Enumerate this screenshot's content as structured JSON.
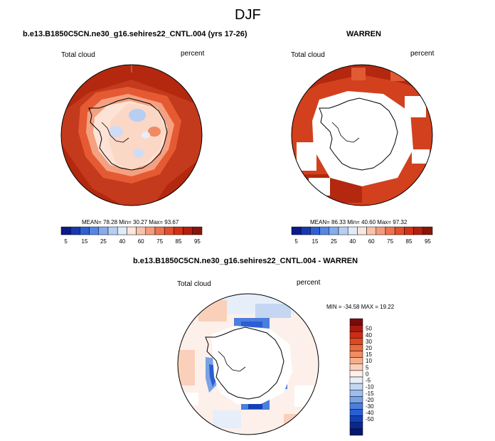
{
  "figure": {
    "season": "DJF",
    "left_panel": {
      "title": "b.e13.B1850C5CN.ne30_g16.sehires22_CNTL.004 (yrs 17-26)",
      "variable": "Total cloud",
      "units": "percent",
      "stats": "MEAN=  78.28  Min=  30.27  Max=  93.67"
    },
    "right_panel": {
      "title": "WARREN",
      "variable": "Total cloud",
      "units": "percent",
      "stats": "MEAN=  86.33  Min=  40.60  Max=  97.32"
    },
    "diff_panel": {
      "title": "b.e13.B1850C5CN.ne30_g16.sehires22_CNTL.004 - WARREN",
      "variable": "Total cloud",
      "units": "percent",
      "stats": "MIN = -34.58 MAX =  19.22"
    },
    "colorbar_abs": {
      "colors": [
        "#0a1a8a",
        "#1638b0",
        "#2e5fd4",
        "#5586e6",
        "#86acee",
        "#b7cff4",
        "#e0ebf8",
        "#fde6dc",
        "#f9c2ac",
        "#f59c7c",
        "#ee7350",
        "#e44e2c",
        "#d23116",
        "#b41e0e",
        "#8a1408"
      ],
      "ticks": [
        "5",
        "15",
        "25",
        "40",
        "60",
        "75",
        "85",
        "95"
      ]
    },
    "colorbar_diff": {
      "colors": [
        "#7a0a0a",
        "#a81a10",
        "#cc2c14",
        "#e0481e",
        "#ec6a3c",
        "#f28c62",
        "#f6ae8c",
        "#fad0ba",
        "#fdf0ea",
        "#e6eef9",
        "#c4d6f2",
        "#9ebcec",
        "#7aa2e6",
        "#4a7ee0",
        "#2a5ed2",
        "#1440b4",
        "#0a2890",
        "#06186a"
      ],
      "ticks": [
        "50",
        "40",
        "30",
        "20",
        "15",
        "10",
        "5",
        "0",
        "-5",
        "-10",
        "-15",
        "-20",
        "-30",
        "-40",
        "-50"
      ]
    }
  }
}
